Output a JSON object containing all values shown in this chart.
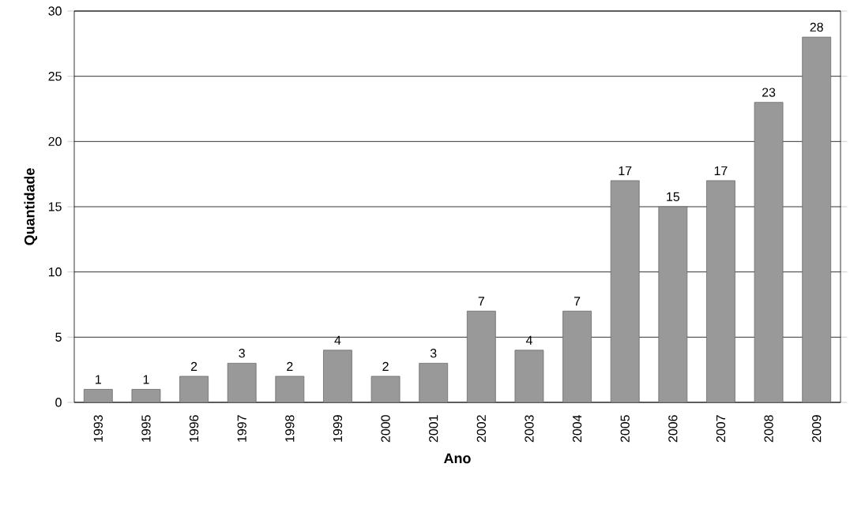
{
  "chart_data": {
    "type": "bar",
    "xlabel": "Ano",
    "ylabel": "Quantidade",
    "categories": [
      "1993",
      "1995",
      "1996",
      "1997",
      "1998",
      "1999",
      "2000",
      "2001",
      "2002",
      "2003",
      "2004",
      "2005",
      "2006",
      "2007",
      "2008",
      "2009"
    ],
    "values": [
      1,
      1,
      2,
      3,
      2,
      4,
      2,
      3,
      7,
      4,
      7,
      17,
      15,
      17,
      23,
      28
    ],
    "color": "#999999",
    "ylim": [
      0,
      30
    ],
    "yticks": [
      0,
      5,
      10,
      15,
      20,
      25,
      30
    ],
    "grid": "y",
    "data_labels": true
  }
}
